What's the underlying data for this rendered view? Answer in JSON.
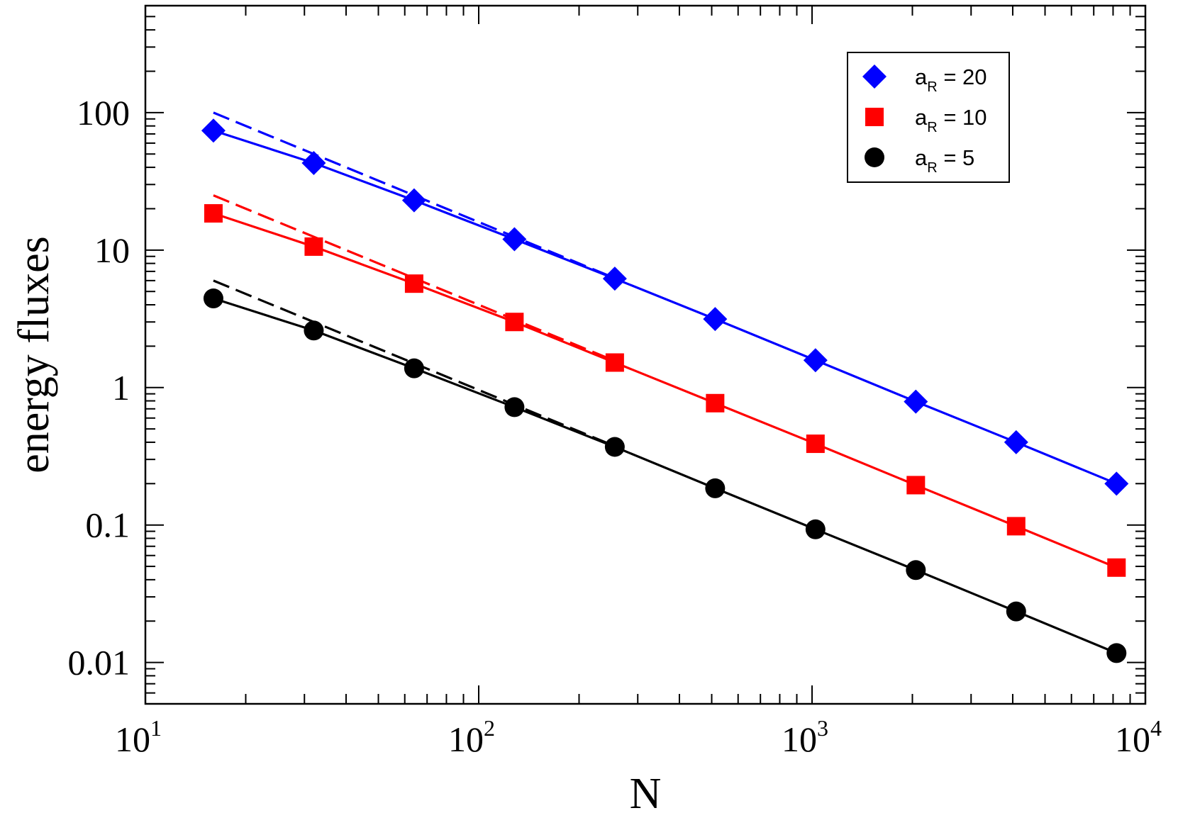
{
  "chart_data": {
    "type": "scatter",
    "title": "",
    "xlabel": "N",
    "ylabel": "energy fluxes",
    "xscale": "log",
    "yscale": "log",
    "xlim": [
      10,
      10000
    ],
    "ylim": [
      0.005,
      600
    ],
    "grid": false,
    "legend_position": "top-right",
    "x_ticks": [
      {
        "value": 10,
        "base": "10",
        "exp": "1"
      },
      {
        "value": 100,
        "base": "10",
        "exp": "2"
      },
      {
        "value": 1000,
        "base": "10",
        "exp": "3"
      },
      {
        "value": 10000,
        "base": "10",
        "exp": "4"
      }
    ],
    "y_ticks": [
      {
        "value": 0.01,
        "label": "0.01"
      },
      {
        "value": 0.1,
        "label": "0.1"
      },
      {
        "value": 1,
        "label": "1"
      },
      {
        "value": 10,
        "label": "10"
      },
      {
        "value": 100,
        "label": "100"
      }
    ],
    "x": [
      16,
      32,
      64,
      128,
      256,
      512,
      1024,
      2048,
      4096,
      8192
    ],
    "series": [
      {
        "name": "a_R = 20",
        "legend_main": "a",
        "legend_sub": "R",
        "legend_rest": " = 20",
        "marker": "diamond",
        "color": "#0000ff",
        "values": [
          74,
          43,
          23,
          12,
          6.2,
          3.15,
          1.58,
          0.79,
          0.4,
          0.2
        ],
        "dashed_fit": {
          "x": [
            16,
            256
          ],
          "y": [
            100,
            6.25
          ]
        }
      },
      {
        "name": "a_R = 10",
        "legend_main": "a",
        "legend_sub": "R",
        "legend_rest": " = 10",
        "marker": "square",
        "color": "#ff0000",
        "values": [
          18.5,
          10.6,
          5.7,
          3.0,
          1.52,
          0.77,
          0.39,
          0.195,
          0.098,
          0.049
        ],
        "dashed_fit": {
          "x": [
            16,
            256
          ],
          "y": [
            25,
            1.5625
          ]
        }
      },
      {
        "name": "a_R = 5",
        "legend_main": "a",
        "legend_sub": "R",
        "legend_rest": " = 5",
        "marker": "circle",
        "color": "#000000",
        "values": [
          4.45,
          2.6,
          1.38,
          0.72,
          0.37,
          0.185,
          0.093,
          0.047,
          0.0235,
          0.0117
        ],
        "dashed_fit": {
          "x": [
            16,
            256
          ],
          "y": [
            6.0,
            0.375
          ]
        }
      }
    ]
  }
}
